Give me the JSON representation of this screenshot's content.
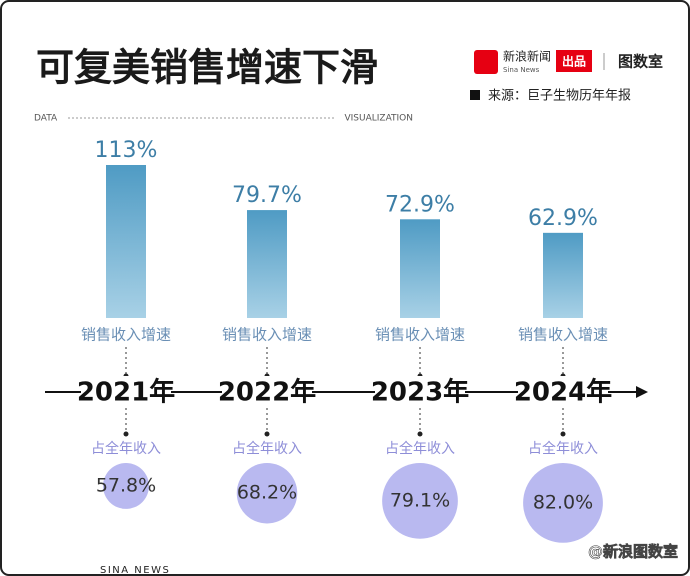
{
  "header": {
    "data": "DATA",
    "visualization": "VISUALIZATION",
    "brand": "新浪新闻",
    "brand_en": "Sina News",
    "produced": "出品",
    "studio": "图数室"
  },
  "footer": {
    "left": "SINA NEWS",
    "right": "@新浪图数室"
  },
  "chart_data": {
    "type": "bar",
    "title": "可复美销售增速下滑",
    "source": "来源：巨子生物历年年报",
    "categories": [
      "2021年",
      "2022年",
      "2023年",
      "2024年"
    ],
    "series": [
      {
        "name": "销售收入增速",
        "color": "#4f9bc4",
        "values": [
          113,
          79.7,
          72.9,
          62.9
        ],
        "value_labels": [
          "113%",
          "79.7%",
          "72.9%",
          "62.9%"
        ]
      },
      {
        "name": "占全年收入",
        "color": "#b9b9f0",
        "values": [
          57.8,
          68.2,
          79.1,
          82.0
        ],
        "value_labels": [
          "57.8%",
          "68.2%",
          "79.1%",
          "82.0%"
        ]
      }
    ]
  }
}
